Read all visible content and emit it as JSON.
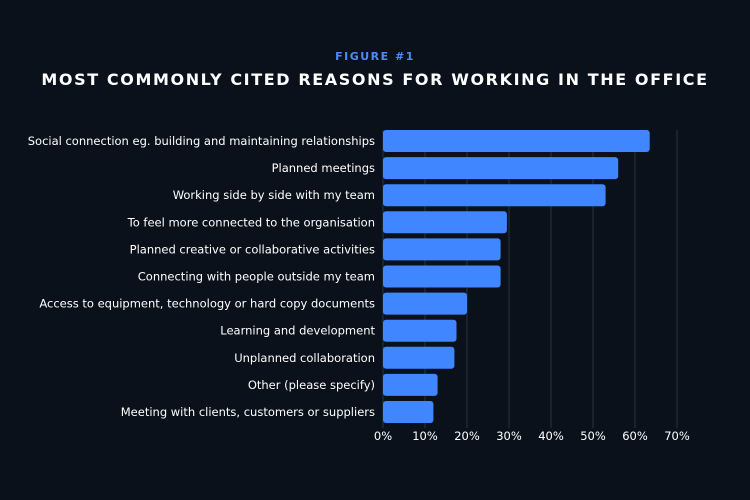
{
  "header": {
    "figure_label": "FIGURE #1",
    "title": "MOST COMMONLY CITED REASONS FOR WORKING IN THE OFFICE"
  },
  "colors": {
    "background": "#0b111b",
    "bar": "#3f86ff",
    "label_text": "#ffffff",
    "figure_label": "#4a8cff",
    "grid": "#2a3340"
  },
  "chart_data": {
    "type": "bar",
    "orientation": "horizontal",
    "title": "MOST COMMONLY CITED REASONS FOR WORKING IN THE OFFICE",
    "xlabel": "",
    "ylabel": "",
    "xlim": [
      0,
      70
    ],
    "x_ticks": [
      "0%",
      "10%",
      "20%",
      "30%",
      "40%",
      "50%",
      "60%",
      "70%"
    ],
    "grid": "vertical",
    "categories": [
      "Social connection eg. building and maintaining relationships",
      "Planned meetings",
      "Working side by side with my team",
      "To feel more connected to the organisation",
      "Planned creative or collaborative activities",
      "Connecting with people outside my team",
      "Access to equipment, technology or hard copy documents",
      "Learning and development",
      "Unplanned collaboration",
      "Other (please specify)",
      "Meeting with clients, customers or suppliers"
    ],
    "values": [
      63.5,
      56,
      53,
      29.5,
      28,
      28,
      20,
      17.5,
      17,
      13,
      12
    ]
  }
}
